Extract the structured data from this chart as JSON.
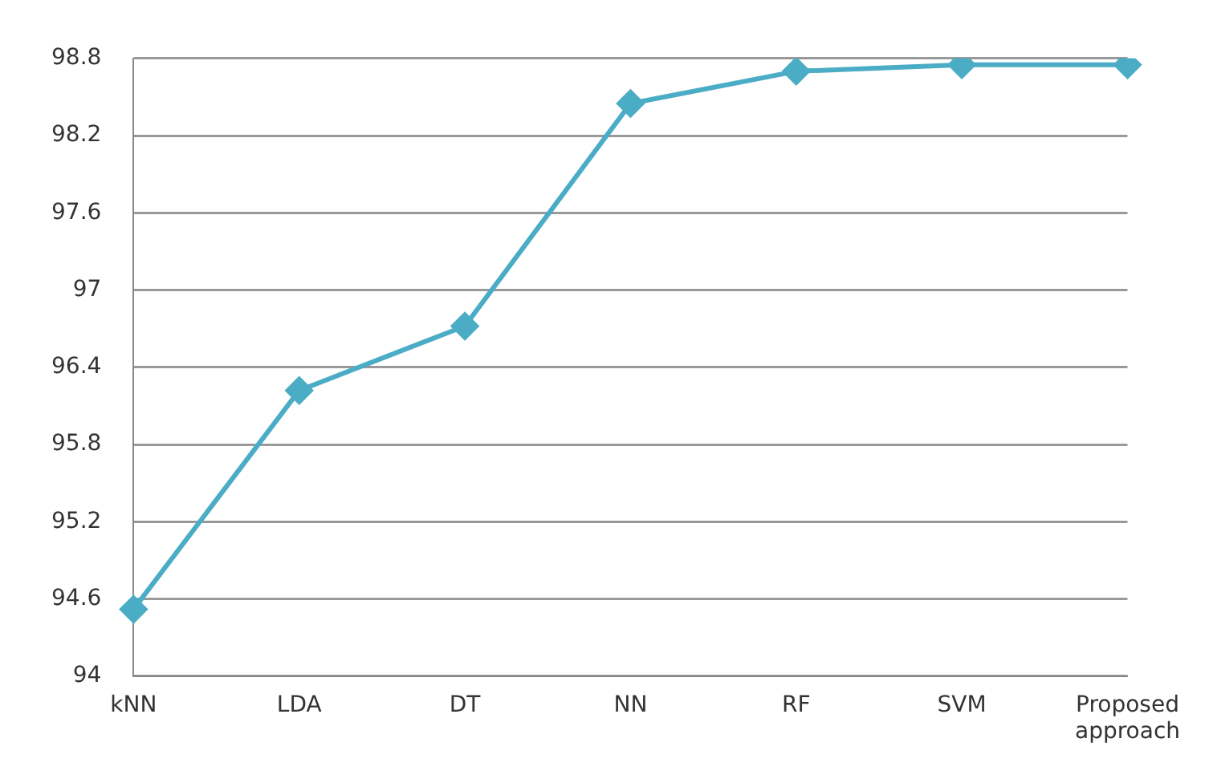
{
  "chart_data": {
    "type": "line",
    "categories": [
      "kNN",
      "LDA",
      "DT",
      "NN",
      "RF",
      "SVM",
      "Proposed approach"
    ],
    "values": [
      94.52,
      96.22,
      96.72,
      98.45,
      98.7,
      98.75,
      98.75
    ],
    "color": "#4bacc6",
    "marker": "diamond",
    "line_style": "solid",
    "ylim": [
      94,
      98.8
    ],
    "yticks": [
      94,
      94.6,
      95.2,
      95.8,
      96.4,
      97,
      97.6,
      98.2,
      98.8
    ],
    "grid": "y",
    "legend": false
  }
}
